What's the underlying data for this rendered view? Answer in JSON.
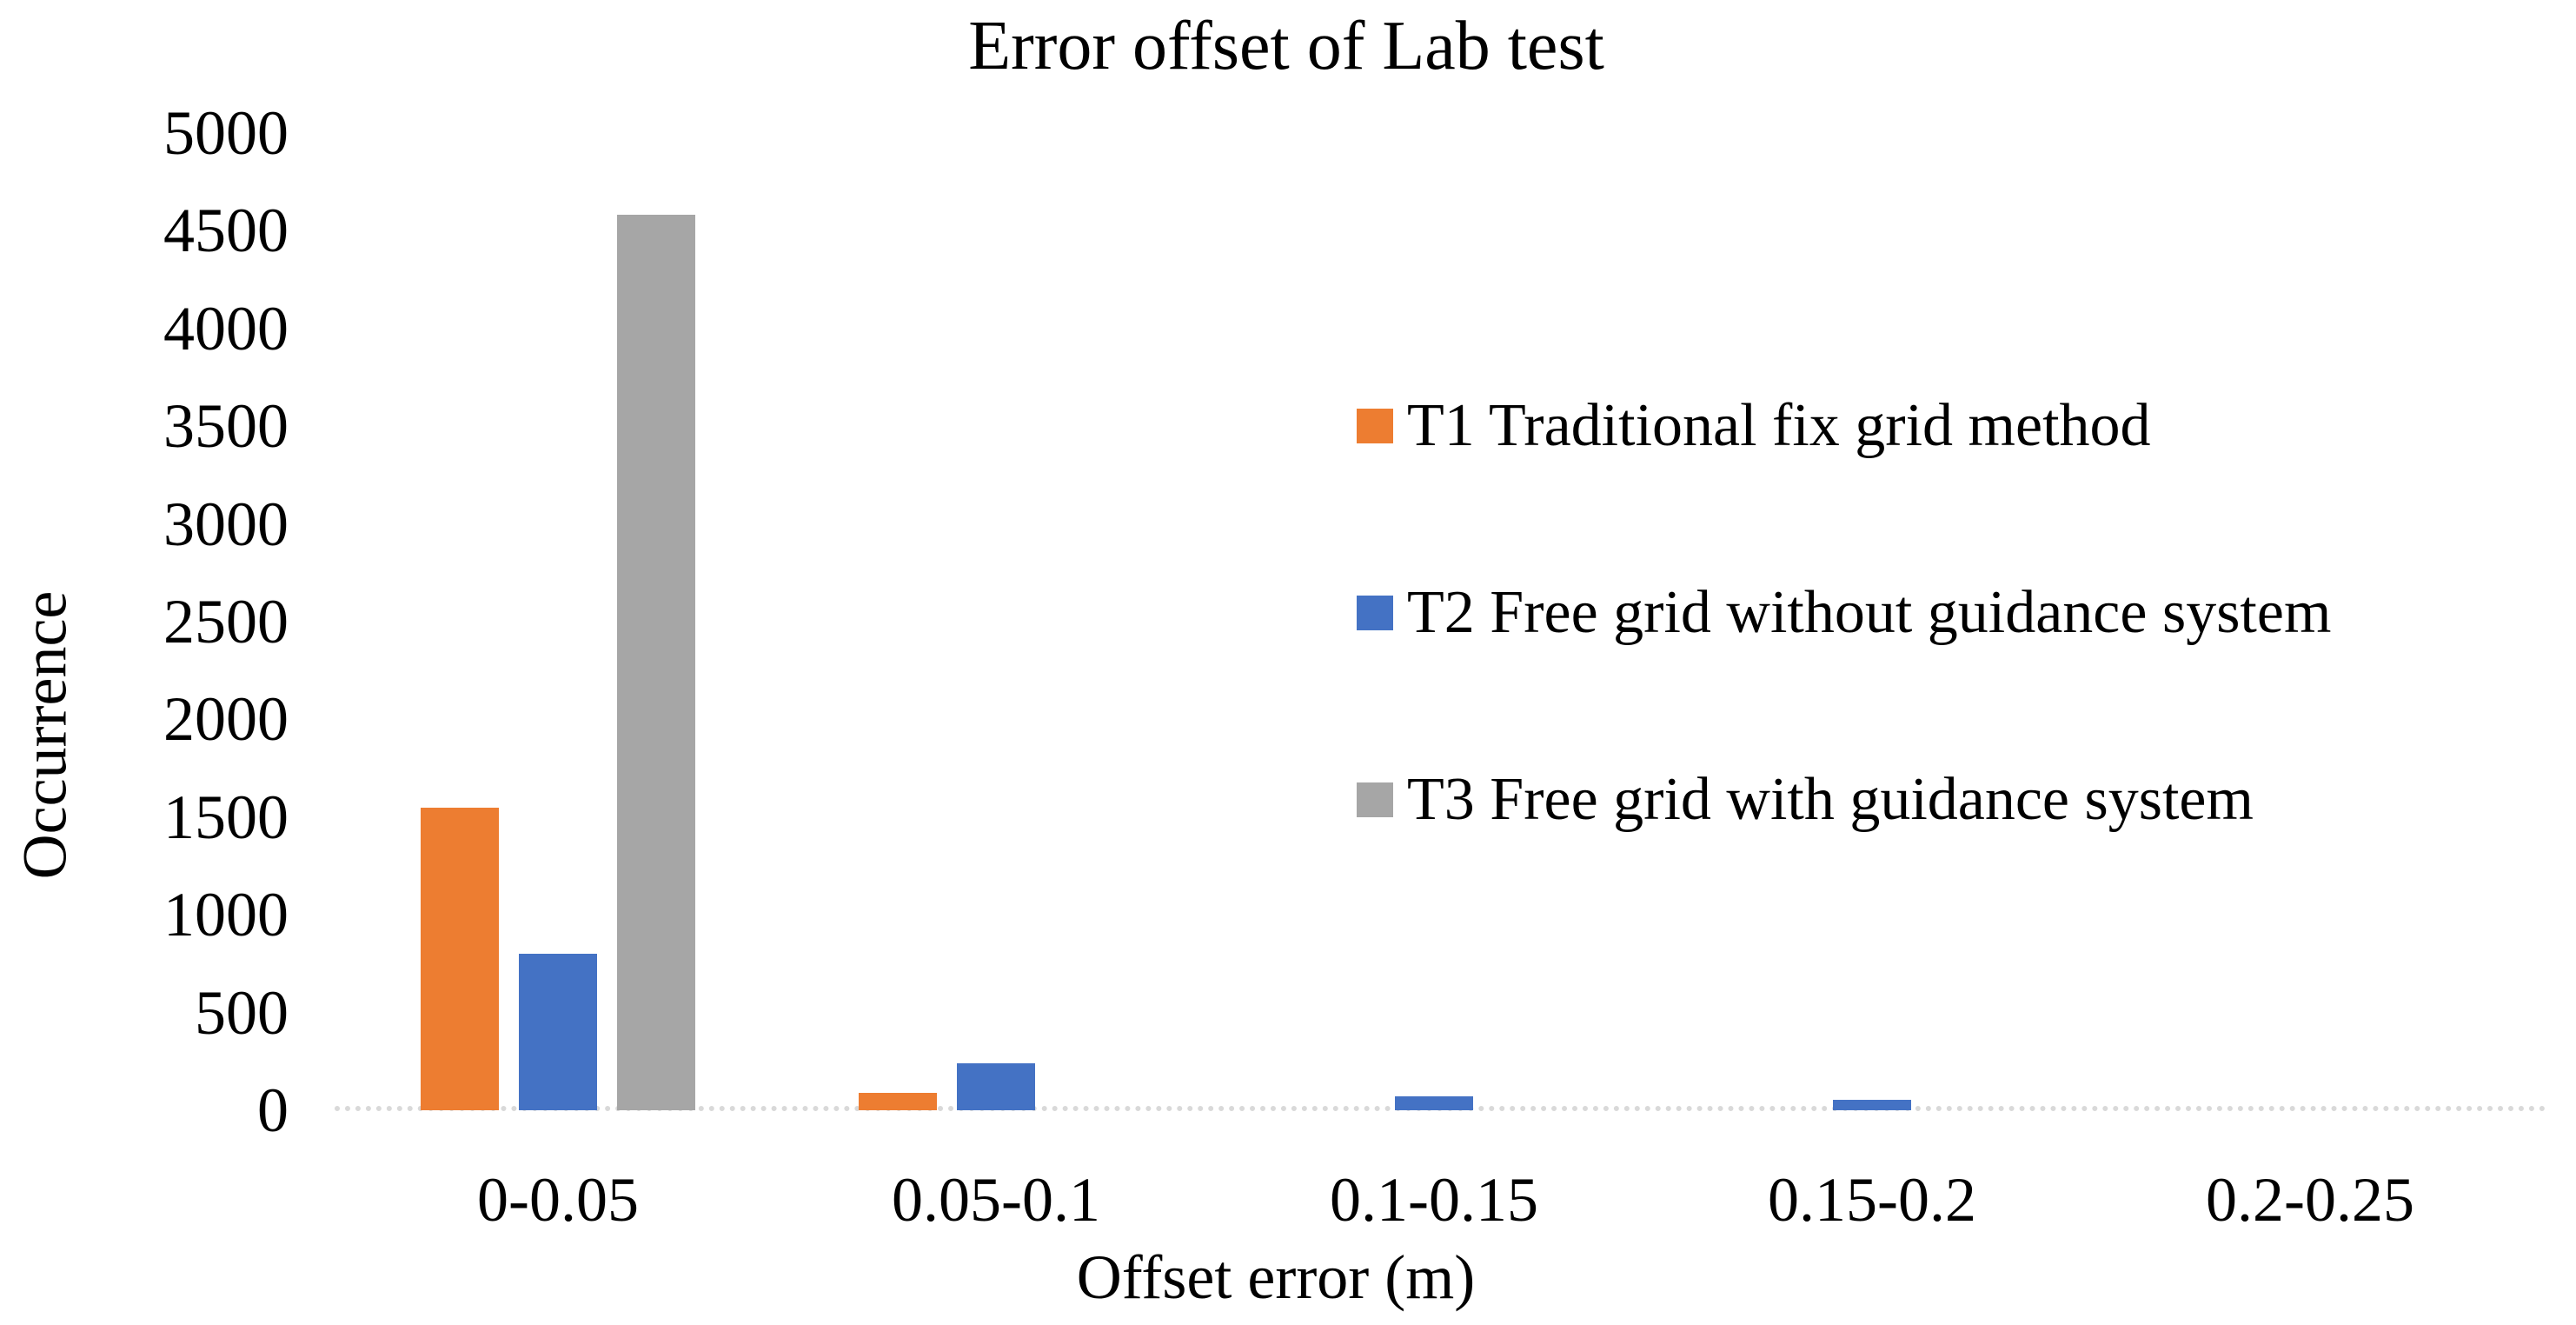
{
  "title": "Error offset of Lab test",
  "chart_data": {
    "type": "bar",
    "title": "Error offset of Lab test",
    "xlabel": "Offset error (m)",
    "ylabel": "Occurrence",
    "ylim": [
      0,
      5000
    ],
    "ytick_step": 500,
    "yticks": [
      0,
      500,
      1000,
      1500,
      2000,
      2500,
      3000,
      3500,
      4000,
      4500,
      5000
    ],
    "categories": [
      "0-0.05",
      "0.05-0.1",
      "0.1-0.15",
      "0.15-0.2",
      "0.2-0.25"
    ],
    "series": [
      {
        "name": "T1 Traditional fix grid method",
        "color": "#ED7D31",
        "values": [
          1550,
          90,
          0,
          0,
          0
        ]
      },
      {
        "name": "T2 Free grid without guidance system",
        "color": "#4472C4",
        "values": [
          800,
          240,
          70,
          55,
          0
        ]
      },
      {
        "name": "T3 Free grid with guidance system",
        "color": "#A6A6A6",
        "values": [
          4580,
          0,
          0,
          0,
          0
        ]
      }
    ],
    "grid": false,
    "legend_position": "right-middle",
    "axis_line_color": "#D9D9D9",
    "background_color": "#FFFFFF"
  }
}
